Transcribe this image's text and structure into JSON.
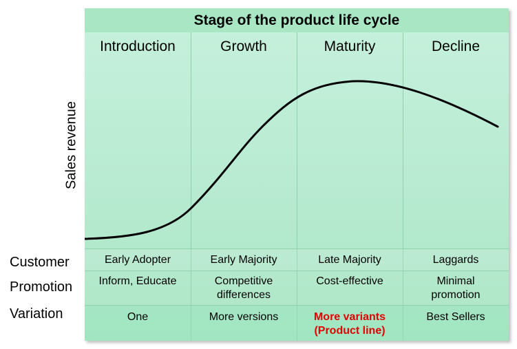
{
  "title": "Stage of the product life cycle",
  "y_axis_label": "Sales revenue",
  "stages": [
    "Introduction",
    "Growth",
    "Maturity",
    "Decline"
  ],
  "rows": [
    {
      "label": "Customer",
      "cells": [
        {
          "text": [
            "Early Adopter"
          ]
        },
        {
          "text": [
            "Early Majority"
          ]
        },
        {
          "text": [
            "Late Majority"
          ]
        },
        {
          "text": [
            "Laggards"
          ]
        }
      ]
    },
    {
      "label": "Promotion",
      "cells": [
        {
          "text": [
            "Inform, Educate"
          ]
        },
        {
          "text": [
            "Competitive",
            "differences"
          ]
        },
        {
          "text": [
            "Cost-effective"
          ]
        },
        {
          "text": [
            "Minimal",
            "promotion"
          ]
        }
      ]
    },
    {
      "label": "Variation",
      "cells": [
        {
          "text": [
            "One"
          ]
        },
        {
          "text": [
            "More versions"
          ]
        },
        {
          "text": [
            "More variants",
            "(Product line)"
          ],
          "highlight": true
        },
        {
          "text": [
            "Best Sellers"
          ]
        }
      ]
    }
  ],
  "colors": {
    "highlight": "#e00000",
    "panel": "#b9ebd2",
    "title_bar": "#a9e6c4"
  }
}
